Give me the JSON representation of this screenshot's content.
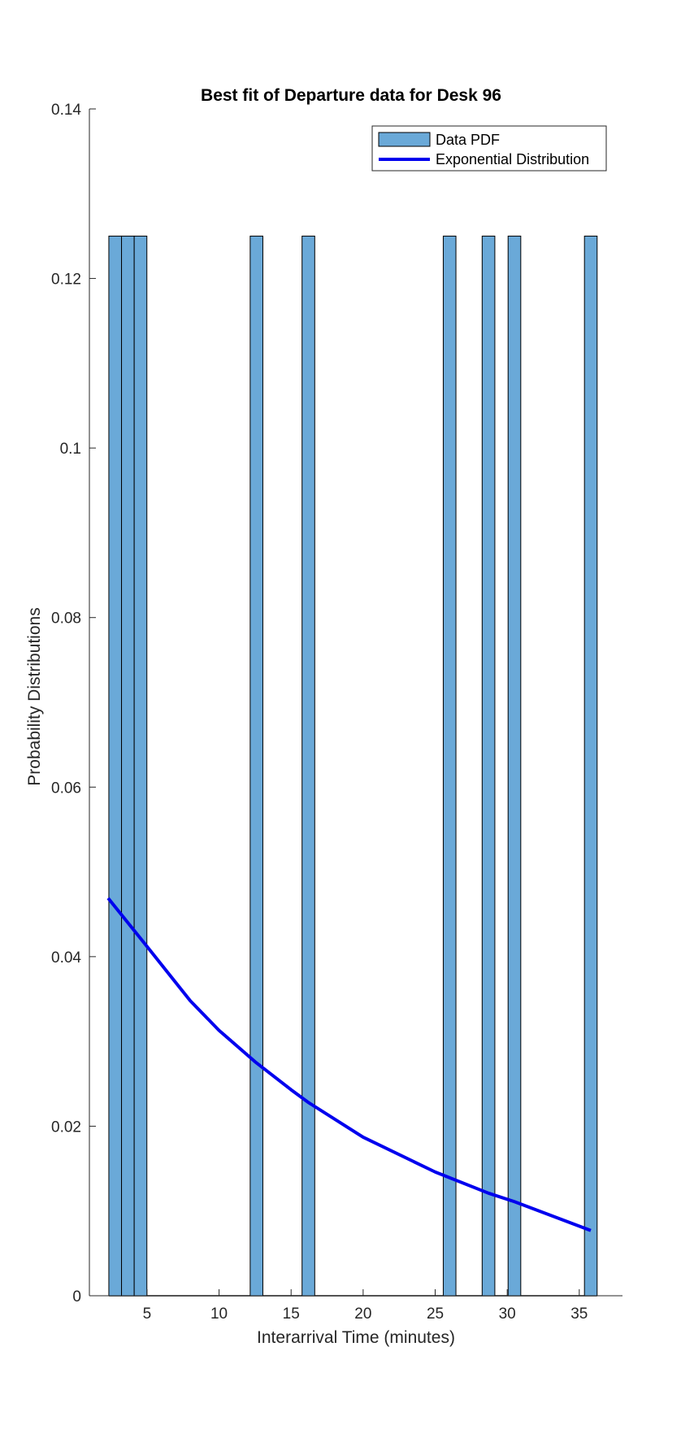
{
  "chart_data": {
    "type": "bar",
    "title": "Best fit of Departure data for Desk 96",
    "xlabel": "Interarrival Time (minutes)",
    "ylabel": "Probability Distributions",
    "xlim": [
      1,
      38
    ],
    "ylim": [
      0,
      0.14
    ],
    "xticks": [
      5,
      10,
      15,
      20,
      25,
      30,
      35
    ],
    "xtick_labels": [
      "5",
      "10",
      "15",
      "20",
      "25",
      "30",
      "35"
    ],
    "yticks": [
      0,
      0.02,
      0.04,
      0.06,
      0.08,
      0.1,
      0.12,
      0.14
    ],
    "ytick_labels": [
      "0",
      "0.02",
      "0.04",
      "0.06",
      "0.08",
      "0.1",
      "0.12",
      "0.14"
    ],
    "grid": false,
    "legend_position": "top-right",
    "bin_width": 0.88,
    "bars": {
      "name": "Data PDF",
      "color": "#6aa9d8",
      "x": [
        2.79,
        3.67,
        4.55,
        12.6,
        16.2,
        26.0,
        28.7,
        30.5,
        35.8
      ],
      "values": [
        0.125,
        0.125,
        0.125,
        0.125,
        0.125,
        0.125,
        0.125,
        0.125,
        0.125
      ]
    },
    "fit_line": {
      "name": "Exponential Distribution",
      "color": "#0000ee",
      "type": "line",
      "x": [
        2.3,
        5,
        8,
        10,
        12.5,
        15,
        16.2,
        20,
        25,
        28.7,
        30.5,
        35.8
      ],
      "values": [
        0.0469,
        0.0412,
        0.0348,
        0.0313,
        0.0276,
        0.0243,
        0.0228,
        0.0187,
        0.0146,
        0.0121,
        0.0111,
        0.0077
      ]
    }
  }
}
